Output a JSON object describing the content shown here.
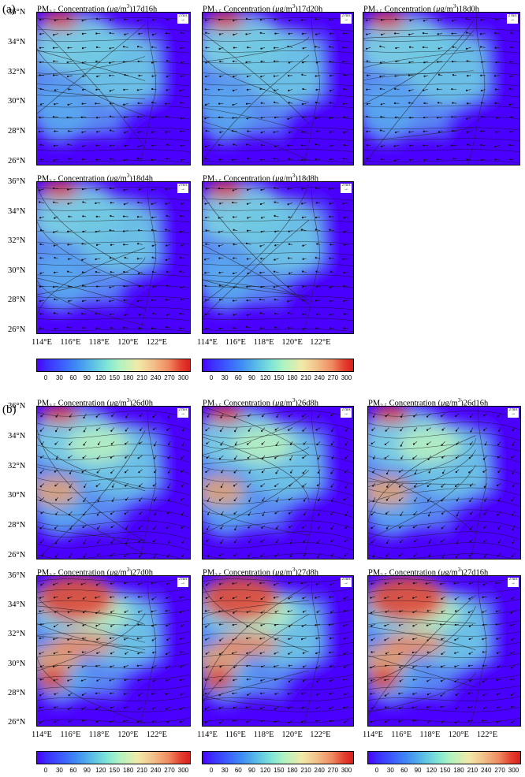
{
  "labels": {
    "a": "(a)",
    "b": "(b)"
  },
  "title_prefix": "PM",
  "title_sub": "2.5",
  "title_mid": " Concentration (",
  "title_mu": "μ",
  "title_unit": "g/m",
  "title_sup": "3",
  "title_close": ")",
  "wind_ref": "2 m/s",
  "lat_ticks": [
    "36°N",
    "34°N",
    "32°N",
    "30°N",
    "28°N",
    "26°N"
  ],
  "lon_ticks": [
    "114°E",
    "116°E",
    "118°E",
    "120°E",
    "122°E"
  ],
  "colorbar_ticks": [
    "0",
    "30",
    "60",
    "90",
    "120",
    "150",
    "180",
    "210",
    "240",
    "270",
    "300"
  ],
  "panels_a": [
    {
      "time": "17d16h"
    },
    {
      "time": "17d20h"
    },
    {
      "time": "18d0h"
    },
    {
      "time": "18d4h"
    },
    {
      "time": "18d8h"
    }
  ],
  "panels_b": [
    {
      "time": "26d0h"
    },
    {
      "time": "26d8h"
    },
    {
      "time": "26d16h"
    },
    {
      "time": "27d0h"
    },
    {
      "time": "27d8h"
    },
    {
      "time": "27d16h"
    }
  ],
  "colors": {
    "low": "#4b00ff",
    "mid": "#80e6d6",
    "high": "#d8201e"
  }
}
